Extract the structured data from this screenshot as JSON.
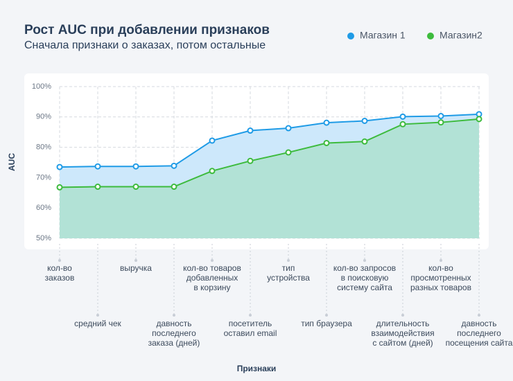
{
  "chart_data": {
    "type": "line",
    "title": "Рост AUC при добавлении признаков",
    "subtitle": "Сначала признаки о заказах, потом остальные",
    "x_label": "Признаки",
    "y_label": "AUC",
    "categories": [
      [
        "кол-во",
        "заказов"
      ],
      [
        "средний чек"
      ],
      [
        "выручка"
      ],
      [
        "давность",
        "последнего",
        "заказа (дней)"
      ],
      [
        "кол-во товаров",
        "добавленных",
        "в корзину"
      ],
      [
        "посетитель",
        "оставил email"
      ],
      [
        "тип",
        "устройства"
      ],
      [
        "тип браузера"
      ],
      [
        "кол-во запросов",
        "в поисковую",
        "систему сайта"
      ],
      [
        "длительность",
        "взаимодействия",
        "с сайтом (дней)"
      ],
      [
        "кол-во",
        "просмотренных",
        "разных товаров"
      ],
      [
        "давность",
        "последнего",
        "посещения сайта"
      ]
    ],
    "series": [
      {
        "name": "Магазин 1",
        "color": "#1f9be6",
        "fill": "#cde8fb",
        "values": [
          73.5,
          73.7,
          73.7,
          73.9,
          82.2,
          85.5,
          86.3,
          88.1,
          88.7,
          90.1,
          90.3,
          90.9
        ]
      },
      {
        "name": "Магазин2",
        "color": "#3dbb3d",
        "fill": "#b2e2d6",
        "values": [
          66.8,
          67.0,
          67.0,
          67.0,
          72.2,
          75.5,
          78.3,
          81.4,
          81.9,
          87.6,
          88.2,
          89.3
        ]
      }
    ],
    "ylim": [
      50,
      100
    ],
    "yticks": [
      {
        "value": 50,
        "label": "50%"
      },
      {
        "value": 60,
        "label": "60%"
      },
      {
        "value": 70,
        "label": "70%"
      },
      {
        "value": 80,
        "label": "80%"
      },
      {
        "value": 90,
        "label": "90%"
      },
      {
        "value": 100,
        "label": "100%"
      }
    ],
    "grid": true,
    "legend": "top-right"
  }
}
